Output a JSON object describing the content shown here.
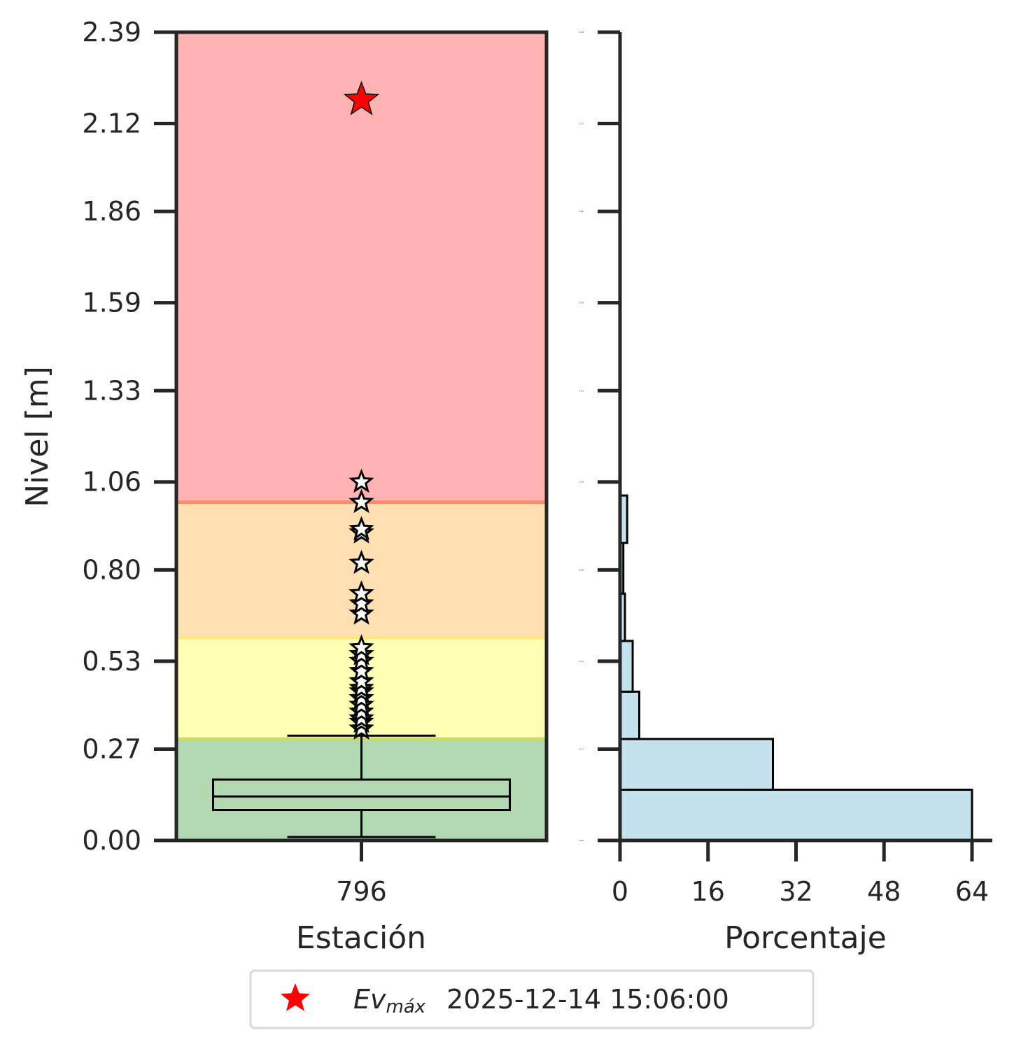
{
  "chart_data": [
    {
      "type": "box",
      "xlabel": "Estación",
      "ylabel": "Nivel [m]",
      "categories": [
        "796"
      ],
      "ylim": [
        0.0,
        2.39
      ],
      "yticks": [
        "0.00",
        "0.27",
        "0.53",
        "0.80",
        "1.06",
        "1.33",
        "1.59",
        "1.86",
        "2.12",
        "2.39"
      ],
      "threshold_bands": [
        {
          "from": 0.0,
          "to": 0.3,
          "color": "#b3d9b3",
          "line_color": "#c8dc66"
        },
        {
          "from": 0.3,
          "to": 0.6,
          "color": "#ffffb3",
          "line_color": "#ffe680"
        },
        {
          "from": 0.6,
          "to": 1.0,
          "color": "#ffe0b3",
          "line_color": "#ff8c66"
        },
        {
          "from": 1.0,
          "to": 2.39,
          "color": "#ffb3b3"
        }
      ],
      "box": {
        "whisker_low": 0.01,
        "q1": 0.09,
        "median": 0.13,
        "q3": 0.18,
        "whisker_high": 0.31
      },
      "outliers": [
        0.33,
        0.35,
        0.36,
        0.38,
        0.4,
        0.42,
        0.44,
        0.45,
        0.47,
        0.5,
        0.53,
        0.55,
        0.57,
        0.67,
        0.7,
        0.73,
        0.82,
        0.91,
        0.92,
        1.0,
        1.06
      ],
      "max_event": {
        "value": 2.19,
        "color": "#ff0000"
      }
    },
    {
      "type": "histogram",
      "orientation": "horizontal",
      "xlabel": "Porcentaje",
      "xlim": [
        0,
        64
      ],
      "xticks": [
        "0",
        "16",
        "32",
        "48",
        "64"
      ],
      "ylim": [
        0.0,
        2.39
      ],
      "yticks": [
        "0.00",
        "0.27",
        "0.53",
        "0.80",
        "1.06",
        "1.33",
        "1.59",
        "1.86",
        "2.12",
        "2.39"
      ],
      "bar_color": "#c3e2ec",
      "bins": [
        {
          "from": 0.0,
          "to": 0.15,
          "value": 64.0
        },
        {
          "from": 0.15,
          "to": 0.3,
          "value": 27.8
        },
        {
          "from": 0.3,
          "to": 0.44,
          "value": 3.5
        },
        {
          "from": 0.44,
          "to": 0.59,
          "value": 2.3
        },
        {
          "from": 0.59,
          "to": 0.73,
          "value": 0.9
        },
        {
          "from": 0.73,
          "to": 0.88,
          "value": 0.6
        },
        {
          "from": 0.88,
          "to": 1.02,
          "value": 1.3
        }
      ]
    }
  ],
  "legend": {
    "symbol_color": "#ff0000",
    "label_main": "Ev",
    "label_sub": "máx",
    "label_date": "2025-12-14 15:06:00"
  }
}
